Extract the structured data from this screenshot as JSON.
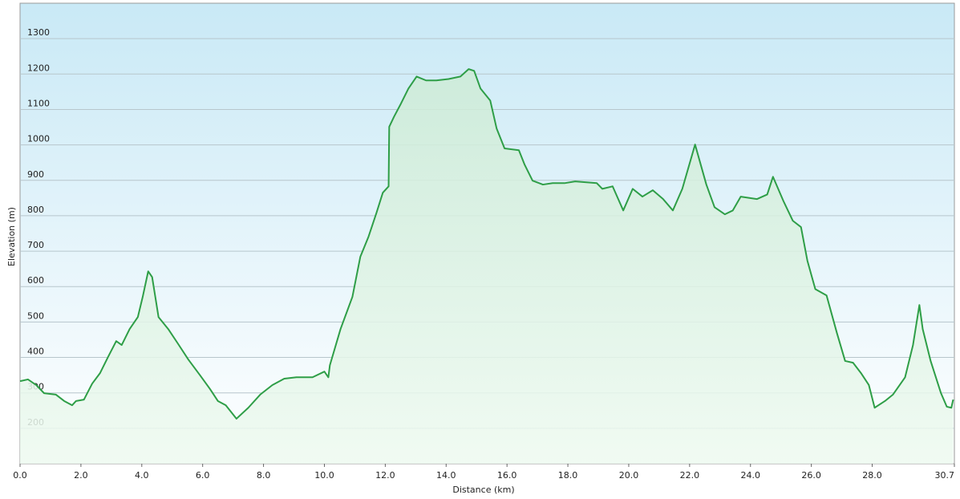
{
  "chart_data": {
    "type": "area",
    "x_label": "Distance  (km)",
    "y_label": "Elevation (m)",
    "color": "#2e9e47",
    "x": [
      0,
      0.26,
      0.53,
      0.79,
      1.18,
      1.45,
      1.71,
      1.84,
      2.1,
      2.37,
      2.63,
      2.89,
      3.16,
      3.34,
      3.6,
      3.87,
      4.03,
      4.21,
      4.34,
      4.55,
      4.87,
      5.18,
      5.53,
      5.92,
      6.24,
      6.5,
      6.76,
      7.11,
      7.5,
      7.89,
      8.29,
      8.68,
      9.08,
      9.61,
      10.0,
      10.13,
      10.18,
      10.53,
      10.92,
      11.18,
      11.45,
      11.71,
      11.92,
      12.11,
      12.13,
      12.29,
      12.5,
      12.76,
      13.03,
      13.34,
      13.68,
      14.08,
      14.47,
      14.74,
      14.92,
      15.13,
      15.45,
      15.66,
      15.92,
      16.39,
      16.58,
      16.84,
      17.18,
      17.5,
      17.89,
      18.24,
      18.95,
      19.13,
      19.47,
      19.82,
      20.13,
      20.45,
      20.79,
      21.13,
      21.45,
      21.76,
      22.18,
      22.55,
      22.82,
      23.16,
      23.42,
      23.68,
      24.21,
      24.55,
      24.74,
      25.08,
      25.39,
      25.66,
      25.87,
      26.13,
      26.5,
      26.84,
      27.11,
      27.37,
      27.63,
      27.89,
      28.08,
      28.42,
      28.68,
      29.08,
      29.34,
      29.55,
      29.66,
      29.92,
      30.26,
      30.45,
      30.6,
      30.66
    ],
    "values": [
      333,
      338,
      322,
      299,
      295,
      277,
      265,
      277,
      281,
      326,
      356,
      401,
      446,
      435,
      480,
      514,
      571,
      643,
      627,
      514,
      480,
      440,
      394,
      349,
      311,
      277,
      265,
      227,
      258,
      295,
      322,
      340,
      344,
      344,
      360,
      344,
      378,
      480,
      571,
      684,
      741,
      808,
      865,
      883,
      1051,
      1080,
      1114,
      1159,
      1193,
      1182,
      1182,
      1186,
      1193,
      1214,
      1209,
      1159,
      1125,
      1046,
      990,
      985,
      944,
      899,
      888,
      892,
      892,
      897,
      892,
      876,
      883,
      815,
      876,
      854,
      872,
      847,
      815,
      876,
      1001,
      888,
      824,
      804,
      815,
      854,
      847,
      860,
      910,
      842,
      786,
      768,
      673,
      593,
      575,
      469,
      390,
      385,
      356,
      322,
      258,
      277,
      295,
      344,
      435,
      548,
      480,
      390,
      299,
      261,
      258,
      281
    ],
    "xlim": [
      0,
      30.7
    ],
    "ylim": [
      100,
      1400
    ],
    "xticks": [
      {
        "value": 0,
        "label": "0.0"
      },
      {
        "value": 2,
        "label": "2.0"
      },
      {
        "value": 4,
        "label": "4.0"
      },
      {
        "value": 6,
        "label": "6.0"
      },
      {
        "value": 8,
        "label": "8.0"
      },
      {
        "value": 10,
        "label": "10.0"
      },
      {
        "value": 12,
        "label": "12.0"
      },
      {
        "value": 14,
        "label": "14.0"
      },
      {
        "value": 16,
        "label": "16.0"
      },
      {
        "value": 18,
        "label": "18.0"
      },
      {
        "value": 20,
        "label": "20.0"
      },
      {
        "value": 22,
        "label": "22.0"
      },
      {
        "value": 24,
        "label": "24.0"
      },
      {
        "value": 26,
        "label": "26.0"
      },
      {
        "value": 28,
        "label": "28.0"
      },
      30.7
    ],
    "yticks": [
      200,
      300,
      400,
      500,
      600,
      700,
      800,
      900,
      1000,
      1100,
      1200,
      1300
    ],
    "grid": true
  }
}
